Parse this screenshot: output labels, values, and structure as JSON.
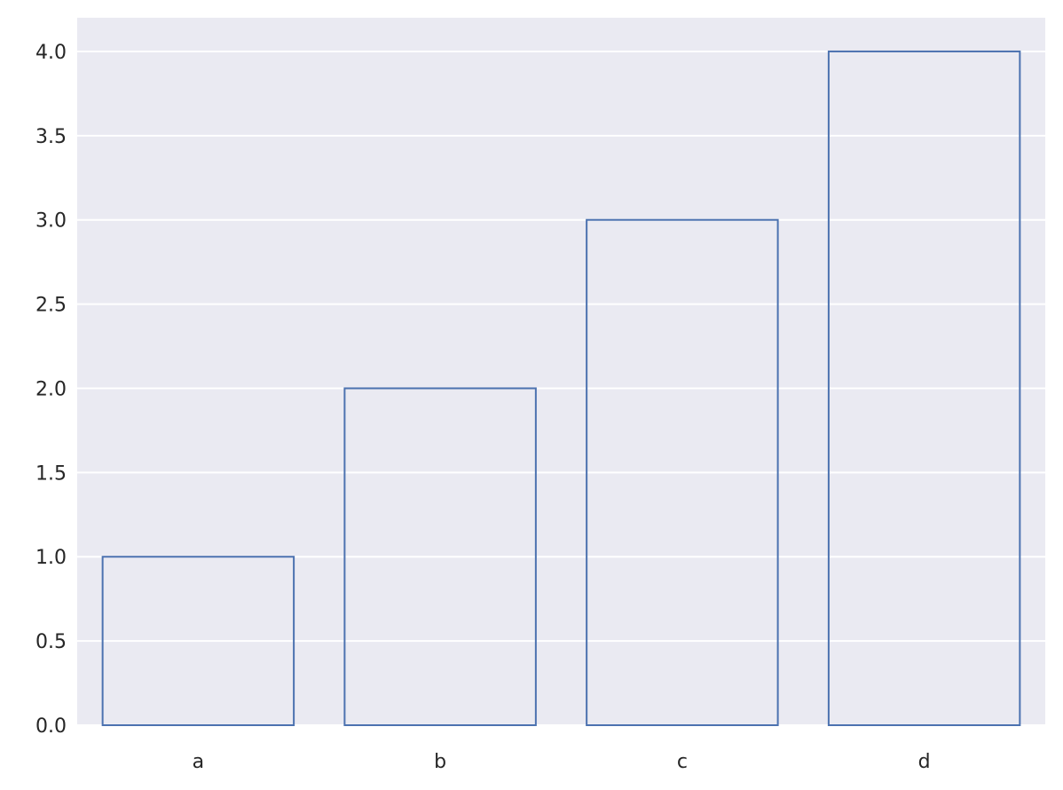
{
  "chart_data": {
    "type": "bar",
    "title": "",
    "xlabel": "",
    "ylabel": "",
    "categories": [
      "a",
      "b",
      "c",
      "d"
    ],
    "values": [
      1,
      2,
      3,
      4
    ],
    "ylim": [
      0,
      4.2
    ],
    "yticks": [
      "0.0",
      "0.5",
      "1.0",
      "1.5",
      "2.0",
      "2.5",
      "3.0",
      "3.5",
      "4.0"
    ],
    "grid": true,
    "legend": "none",
    "colors": {
      "plot_background": "#EAEAF2",
      "bar_edge": "#4C72B0",
      "bar_fill": "none",
      "grid": "#FFFFFF",
      "text": "#262626"
    }
  }
}
